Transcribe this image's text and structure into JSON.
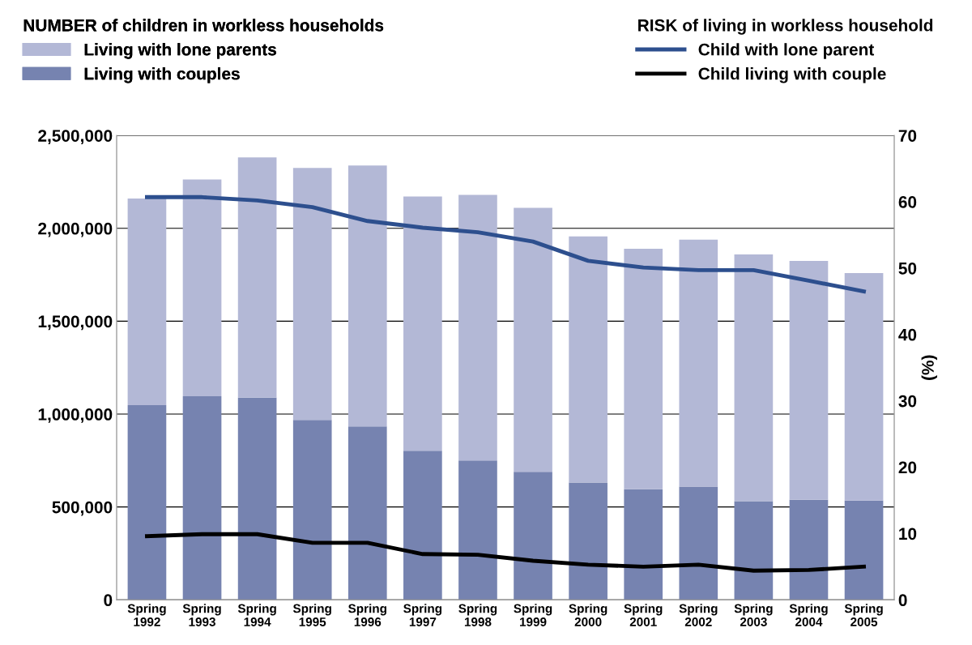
{
  "chart_data": {
    "type": "bar",
    "stacked": true,
    "categories": [
      "Spring\n1992",
      "Spring\n1993",
      "Spring\n1994",
      "Spring\n1995",
      "Spring\n1996",
      "Spring\n1997",
      "Spring\n1998",
      "Spring\n1999",
      "Spring\n2000",
      "Spring\n2001",
      "Spring\n2002",
      "Spring\n2003",
      "Spring\n2004",
      "Spring\n2005"
    ],
    "series": [
      {
        "name": "Living with couples",
        "color": "#7683b0",
        "values": [
          1048000,
          1096000,
          1088000,
          969000,
          934000,
          803000,
          750000,
          689000,
          632000,
          596000,
          610000,
          531000,
          539000,
          535000
        ]
      },
      {
        "name": "Living with lone parents",
        "color": "#b3b8d6",
        "values": [
          1112000,
          1167000,
          1294000,
          1356000,
          1404000,
          1368000,
          1430000,
          1421000,
          1324000,
          1294000,
          1329000,
          1329000,
          1286000,
          1224000
        ]
      },
      {
        "name": "Child with lone parent",
        "type": "line",
        "axis": "y2",
        "color": "#2d4f8e",
        "values": [
          60.7,
          60.7,
          60.2,
          59.2,
          57.1,
          56.1,
          55.4,
          54.0,
          51.1,
          50.1,
          49.7,
          49.7,
          48.1,
          46.5
        ]
      },
      {
        "name": "Child living with couple",
        "type": "line",
        "axis": "y2",
        "color": "#000000",
        "values": [
          9.6,
          9.9,
          9.9,
          8.6,
          8.6,
          6.9,
          6.8,
          5.9,
          5.3,
          5.0,
          5.3,
          4.4,
          4.5,
          5.0
        ]
      }
    ],
    "annotations": [
      "NUMBER of children in workless households",
      "RISK of living in workless household"
    ],
    "ylim": [
      0,
      2500000
    ],
    "yticks": [
      {
        "value": 0,
        "label": "0"
      },
      {
        "value": 500000,
        "label": "500,000"
      },
      {
        "value": 1000000,
        "label": "1,000,000"
      },
      {
        "value": 1500000,
        "label": "1,500,000"
      },
      {
        "value": 2000000,
        "label": "2,000,000"
      },
      {
        "value": 2500000,
        "label": "2,500,000"
      }
    ],
    "y2lim": [
      0,
      70
    ],
    "y2ticks": [
      0,
      10,
      20,
      30,
      40,
      50,
      60,
      70
    ],
    "y2label": "(%)",
    "grid": "y",
    "legend": "top",
    "line_style": "solid",
    "marker": "none"
  }
}
